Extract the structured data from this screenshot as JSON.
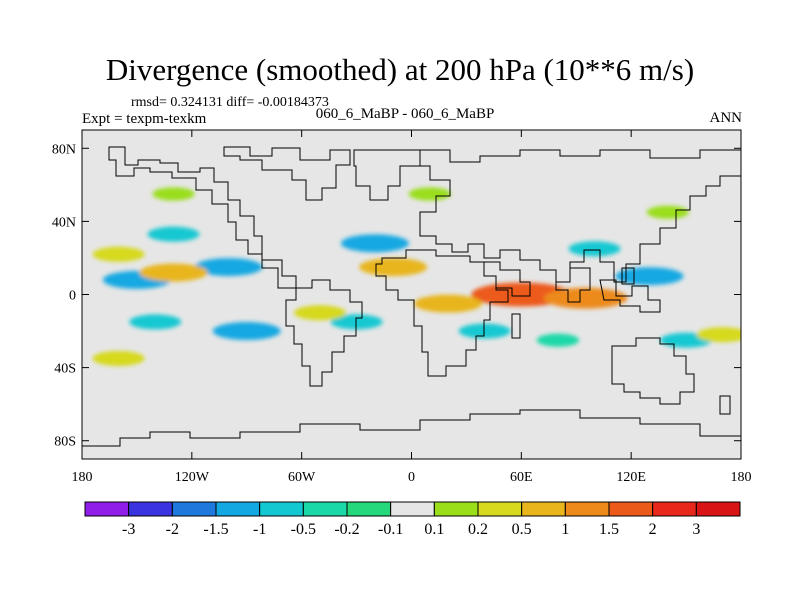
{
  "chart_data": {
    "type": "heatmap",
    "title": "Divergence (smoothed) at 200 hPa (10**6 m/s)",
    "stats": "rmsd= 0.324131 diff= -0.00184373",
    "experiment": "Expt = texpm-texkm",
    "runs": "060_6_MaBP - 060_6_MaBP",
    "season": "ANN",
    "x_ticks": [
      "180",
      "120W",
      "60W",
      "0",
      "60E",
      "120E",
      "180"
    ],
    "y_ticks": [
      "80N",
      "40N",
      "0",
      "40S",
      "80S"
    ],
    "xlim": [
      -180,
      180
    ],
    "ylim": [
      -90,
      90
    ],
    "colorbar": {
      "labels": [
        "-3",
        "-2",
        "-1.5",
        "-1",
        "-0.5",
        "-0.2",
        "-0.1",
        "0.1",
        "0.2",
        "0.5",
        "1",
        "1.5",
        "2",
        "3"
      ],
      "colors": [
        "#8f1ee8",
        "#3a33e0",
        "#1f78dc",
        "#14a8e2",
        "#14c8d2",
        "#1ad8a8",
        "#26d87c",
        "#e6e6e6",
        "#9ade1a",
        "#d6d91e",
        "#e8b51c",
        "#ec8a1c",
        "#ec5a1a",
        "#e8281a",
        "#d81414"
      ]
    },
    "regions": [
      {
        "lon": -150,
        "lat": 8,
        "value": -1
      },
      {
        "lon": -100,
        "lat": 15,
        "value": -1
      },
      {
        "lon": -130,
        "lat": 33,
        "value": -0.5
      },
      {
        "lon": -90,
        "lat": -20,
        "value": -1
      },
      {
        "lon": -140,
        "lat": -15,
        "value": -0.5
      },
      {
        "lon": -20,
        "lat": 28,
        "value": -1
      },
      {
        "lon": -30,
        "lat": -15,
        "value": -0.5
      },
      {
        "lon": 100,
        "lat": 25,
        "value": -0.5
      },
      {
        "lon": 130,
        "lat": 10,
        "value": -1
      },
      {
        "lon": 150,
        "lat": -25,
        "value": -0.5
      },
      {
        "lon": 40,
        "lat": -20,
        "value": -0.5
      },
      {
        "lon": 80,
        "lat": -25,
        "value": -0.2
      },
      {
        "lon": -130,
        "lat": 12,
        "value": 1
      },
      {
        "lon": -160,
        "lat": 22,
        "value": 0.5
      },
      {
        "lon": -10,
        "lat": 15,
        "value": 1
      },
      {
        "lon": 60,
        "lat": 0,
        "value": 2
      },
      {
        "lon": 95,
        "lat": -2,
        "value": 1.5
      },
      {
        "lon": -50,
        "lat": -10,
        "value": 0.5
      },
      {
        "lon": 20,
        "lat": -5,
        "value": 1
      },
      {
        "lon": 170,
        "lat": -22,
        "value": 0.5
      },
      {
        "lon": -130,
        "lat": 55,
        "value": 0.2
      },
      {
        "lon": 10,
        "lat": 55,
        "value": 0.2
      },
      {
        "lon": -160,
        "lat": -35,
        "value": 0.5
      },
      {
        "lon": 140,
        "lat": 45,
        "value": 0.2
      }
    ]
  }
}
